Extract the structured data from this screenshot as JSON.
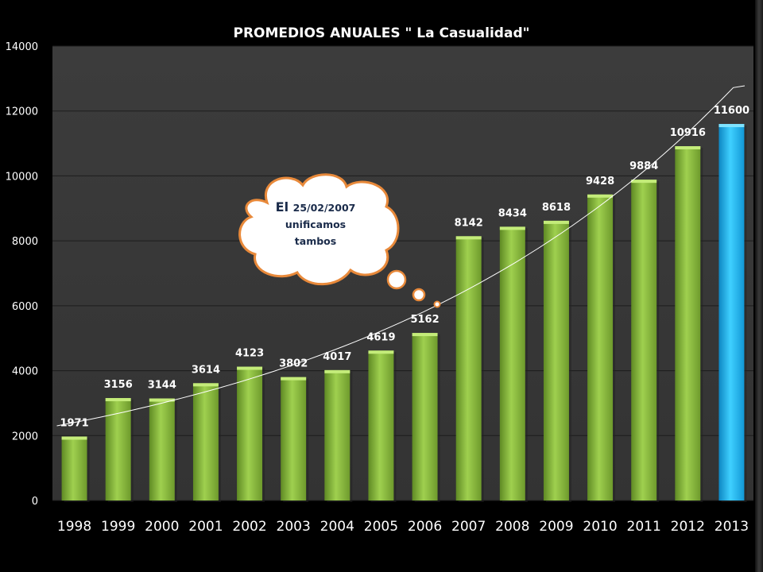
{
  "chart_data": {
    "type": "bar",
    "title": "PROMEDIOS ANUALES \" La Casualidad\"",
    "xlabel": "",
    "ylabel": "",
    "categories": [
      "1998",
      "1999",
      "2000",
      "2001",
      "2002",
      "2003",
      "2004",
      "2005",
      "2006",
      "2007",
      "2008",
      "2009",
      "2010",
      "2011",
      "2012",
      "2013"
    ],
    "values": [
      1971,
      3156,
      3144,
      3614,
      4123,
      3802,
      4017,
      4619,
      5162,
      8142,
      8434,
      8618,
      9428,
      9884,
      10916,
      11600
    ],
    "ylim": [
      0,
      14000
    ],
    "yticks": [
      "0",
      "2000",
      "4000",
      "6000",
      "8000",
      "10000",
      "12000",
      "14000"
    ],
    "grid": true,
    "trendline": true,
    "bar_color": "#8cbf3f",
    "highlight_color": "#1fb4e8",
    "highlight_category": "2013",
    "plot_background": "#3a3a3a"
  },
  "annotation": {
    "line1_prefix": "El ",
    "line1_date": "25/02/2007",
    "line2": "unificamos",
    "line3": "tambos"
  }
}
